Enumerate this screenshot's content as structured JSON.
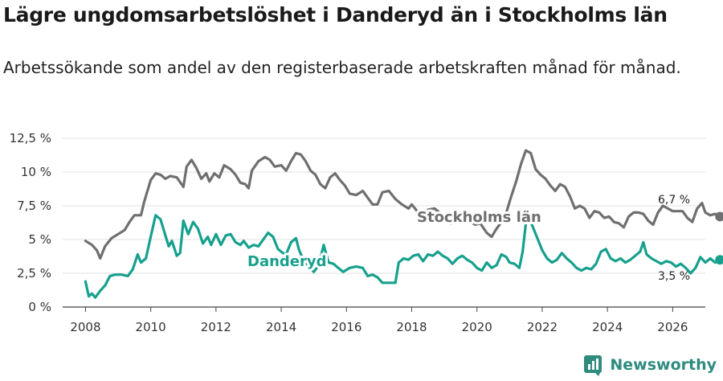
{
  "title": "Lägre ungdomsarbetslöshet i Danderyd än i Stockholms län",
  "subtitle": "Arbetssökande som andel av den registerbaserade arbetskraften månad för månad.",
  "brand": {
    "name": "Newsworthy",
    "color": "#2e8b7e"
  },
  "chart_data": {
    "type": "line",
    "title": "Lägre ungdomsarbetslöshet i Danderyd än i Stockholms län",
    "xlabel": "",
    "ylabel": "",
    "xlim": [
      2007.3,
      2027.0
    ],
    "ylim": [
      0,
      12.5
    ],
    "x_ticks": [
      2008,
      2010,
      2012,
      2014,
      2016,
      2018,
      2020,
      2022,
      2024,
      2026
    ],
    "y_ticks": [
      0,
      2.5,
      5,
      7.5,
      10,
      12.5
    ],
    "y_tick_labels": [
      "0 %",
      "2,5 %",
      "5 %",
      "7,5 %",
      "10 %",
      "12,5 %"
    ],
    "grid": "horizontal",
    "series": [
      {
        "name": "Stockholms län",
        "color": "#6f6f72",
        "label_text": "Stockholms län",
        "end_label": "6,7 %",
        "points": [
          [
            2008.0,
            4.9
          ],
          [
            2008.2,
            4.6
          ],
          [
            2008.35,
            4.2
          ],
          [
            2008.45,
            3.6
          ],
          [
            2008.6,
            4.5
          ],
          [
            2008.8,
            5.1
          ],
          [
            2009.0,
            5.4
          ],
          [
            2009.2,
            5.7
          ],
          [
            2009.35,
            6.3
          ],
          [
            2009.5,
            6.8
          ],
          [
            2009.7,
            6.8
          ],
          [
            2009.8,
            7.8
          ],
          [
            2010.0,
            9.4
          ],
          [
            2010.15,
            9.9
          ],
          [
            2010.3,
            9.8
          ],
          [
            2010.45,
            9.5
          ],
          [
            2010.6,
            9.7
          ],
          [
            2010.8,
            9.6
          ],
          [
            2011.0,
            8.9
          ],
          [
            2011.1,
            10.4
          ],
          [
            2011.25,
            10.9
          ],
          [
            2011.4,
            10.3
          ],
          [
            2011.55,
            9.5
          ],
          [
            2011.7,
            9.9
          ],
          [
            2011.8,
            9.3
          ],
          [
            2011.95,
            9.9
          ],
          [
            2012.1,
            9.6
          ],
          [
            2012.25,
            10.5
          ],
          [
            2012.45,
            10.2
          ],
          [
            2012.6,
            9.8
          ],
          [
            2012.75,
            9.2
          ],
          [
            2012.9,
            9.1
          ],
          [
            2013.0,
            8.8
          ],
          [
            2013.1,
            10.1
          ],
          [
            2013.3,
            10.8
          ],
          [
            2013.5,
            11.1
          ],
          [
            2013.65,
            10.9
          ],
          [
            2013.8,
            10.4
          ],
          [
            2014.0,
            10.5
          ],
          [
            2014.15,
            10.1
          ],
          [
            2014.3,
            10.8
          ],
          [
            2014.45,
            11.4
          ],
          [
            2014.6,
            11.3
          ],
          [
            2014.75,
            10.8
          ],
          [
            2014.9,
            10.1
          ],
          [
            2015.05,
            9.8
          ],
          [
            2015.2,
            9.1
          ],
          [
            2015.35,
            8.8
          ],
          [
            2015.5,
            9.6
          ],
          [
            2015.65,
            9.9
          ],
          [
            2015.8,
            9.4
          ],
          [
            2015.95,
            9.0
          ],
          [
            2016.1,
            8.4
          ],
          [
            2016.3,
            8.3
          ],
          [
            2016.5,
            8.6
          ],
          [
            2016.65,
            8.1
          ],
          [
            2016.8,
            7.6
          ],
          [
            2016.95,
            7.6
          ],
          [
            2017.1,
            8.5
          ],
          [
            2017.3,
            8.6
          ],
          [
            2017.5,
            8.0
          ],
          [
            2017.7,
            7.6
          ],
          [
            2017.9,
            7.3
          ],
          [
            2018.0,
            7.6
          ],
          [
            2018.2,
            7.0
          ],
          [
            2018.35,
            6.6
          ],
          [
            2018.5,
            7.2
          ],
          [
            2018.7,
            7.3
          ],
          [
            2018.9,
            6.9
          ],
          [
            2019.05,
            6.6
          ],
          [
            2019.2,
            6.2
          ],
          [
            2019.35,
            6.6
          ],
          [
            2019.5,
            7.0
          ],
          [
            2019.65,
            6.8
          ],
          [
            2019.8,
            6.3
          ],
          [
            2019.95,
            6.1
          ],
          [
            2020.1,
            6.2
          ],
          [
            2020.3,
            5.5
          ],
          [
            2020.45,
            5.2
          ],
          [
            2020.6,
            5.8
          ],
          [
            2020.75,
            6.3
          ],
          [
            2020.9,
            7.0
          ],
          [
            2021.05,
            8.2
          ],
          [
            2021.2,
            9.3
          ],
          [
            2021.35,
            10.6
          ],
          [
            2021.5,
            11.6
          ],
          [
            2021.65,
            11.4
          ],
          [
            2021.8,
            10.2
          ],
          [
            2021.95,
            9.8
          ],
          [
            2022.1,
            9.5
          ],
          [
            2022.25,
            9.0
          ],
          [
            2022.4,
            8.6
          ],
          [
            2022.55,
            9.1
          ],
          [
            2022.7,
            8.9
          ],
          [
            2022.85,
            8.2
          ],
          [
            2023.0,
            7.3
          ],
          [
            2023.15,
            7.5
          ],
          [
            2023.3,
            7.3
          ],
          [
            2023.45,
            6.6
          ],
          [
            2023.6,
            7.1
          ],
          [
            2023.75,
            7.0
          ],
          [
            2023.9,
            6.6
          ],
          [
            2024.05,
            6.7
          ],
          [
            2024.2,
            6.3
          ],
          [
            2024.35,
            6.2
          ],
          [
            2024.5,
            5.9
          ],
          [
            2024.65,
            6.7
          ],
          [
            2024.8,
            7.0
          ],
          [
            2024.95,
            7.0
          ],
          [
            2025.1,
            6.9
          ],
          [
            2025.25,
            6.4
          ],
          [
            2025.4,
            6.1
          ],
          [
            2025.55,
            7.0
          ],
          [
            2025.7,
            7.5
          ],
          [
            2025.85,
            7.3
          ],
          [
            2026.0,
            7.1
          ],
          [
            2026.15,
            7.1
          ],
          [
            2026.3,
            7.1
          ],
          [
            2026.45,
            6.6
          ],
          [
            2026.6,
            6.3
          ],
          [
            2026.75,
            7.3
          ],
          [
            2026.9,
            7.7
          ],
          [
            2027.0,
            7.0
          ],
          [
            2027.15,
            6.8
          ],
          [
            2027.3,
            6.9
          ],
          [
            2027.45,
            6.7
          ]
        ]
      },
      {
        "name": "Danderyd",
        "color": "#17a08d",
        "label_text": "Danderyd",
        "end_label": "3,5 %",
        "points": [
          [
            2008.0,
            1.9
          ],
          [
            2008.1,
            0.8
          ],
          [
            2008.2,
            1.0
          ],
          [
            2008.3,
            0.7
          ],
          [
            2008.45,
            1.2
          ],
          [
            2008.6,
            1.6
          ],
          [
            2008.75,
            2.3
          ],
          [
            2008.9,
            2.4
          ],
          [
            2009.1,
            2.4
          ],
          [
            2009.3,
            2.3
          ],
          [
            2009.45,
            2.8
          ],
          [
            2009.6,
            3.9
          ],
          [
            2009.7,
            3.3
          ],
          [
            2009.85,
            3.6
          ],
          [
            2010.0,
            5.2
          ],
          [
            2010.15,
            6.8
          ],
          [
            2010.3,
            6.5
          ],
          [
            2010.45,
            5.3
          ],
          [
            2010.55,
            4.5
          ],
          [
            2010.65,
            4.9
          ],
          [
            2010.8,
            3.8
          ],
          [
            2010.9,
            4.0
          ],
          [
            2011.0,
            6.4
          ],
          [
            2011.15,
            5.4
          ],
          [
            2011.3,
            6.3
          ],
          [
            2011.45,
            5.8
          ],
          [
            2011.6,
            4.7
          ],
          [
            2011.75,
            5.2
          ],
          [
            2011.85,
            4.6
          ],
          [
            2012.0,
            5.4
          ],
          [
            2012.15,
            4.6
          ],
          [
            2012.3,
            5.3
          ],
          [
            2012.45,
            5.4
          ],
          [
            2012.6,
            4.8
          ],
          [
            2012.75,
            4.6
          ],
          [
            2012.85,
            4.9
          ],
          [
            2013.0,
            4.4
          ],
          [
            2013.15,
            4.6
          ],
          [
            2013.3,
            4.5
          ],
          [
            2013.45,
            5.0
          ],
          [
            2013.6,
            5.5
          ],
          [
            2013.75,
            5.2
          ],
          [
            2013.9,
            4.3
          ],
          [
            2014.05,
            4.0
          ],
          [
            2014.15,
            3.9
          ],
          [
            2014.3,
            4.8
          ],
          [
            2014.45,
            5.1
          ],
          [
            2014.55,
            4.2
          ],
          [
            2014.7,
            3.4
          ],
          [
            2014.85,
            3.0
          ],
          [
            2015.0,
            2.6
          ],
          [
            2015.15,
            3.1
          ],
          [
            2015.3,
            4.6
          ],
          [
            2015.45,
            3.3
          ],
          [
            2015.6,
            3.2
          ],
          [
            2015.75,
            2.9
          ],
          [
            2015.9,
            2.6
          ],
          [
            2016.1,
            2.9
          ],
          [
            2016.3,
            3.0
          ],
          [
            2016.5,
            2.9
          ],
          [
            2016.65,
            2.3
          ],
          [
            2016.8,
            2.4
          ],
          [
            2016.95,
            2.2
          ],
          [
            2017.1,
            1.8
          ],
          [
            2017.3,
            1.8
          ],
          [
            2017.5,
            1.8
          ],
          [
            2017.6,
            3.3
          ],
          [
            2017.75,
            3.6
          ],
          [
            2017.9,
            3.5
          ],
          [
            2018.05,
            3.8
          ],
          [
            2018.2,
            3.9
          ],
          [
            2018.35,
            3.4
          ],
          [
            2018.5,
            3.9
          ],
          [
            2018.65,
            3.8
          ],
          [
            2018.8,
            4.1
          ],
          [
            2018.95,
            3.8
          ],
          [
            2019.1,
            3.6
          ],
          [
            2019.25,
            3.2
          ],
          [
            2019.4,
            3.6
          ],
          [
            2019.55,
            3.8
          ],
          [
            2019.7,
            3.5
          ],
          [
            2019.85,
            3.3
          ],
          [
            2020.0,
            2.9
          ],
          [
            2020.15,
            2.7
          ],
          [
            2020.3,
            3.3
          ],
          [
            2020.45,
            2.9
          ],
          [
            2020.6,
            3.1
          ],
          [
            2020.75,
            3.9
          ],
          [
            2020.9,
            3.7
          ],
          [
            2021.0,
            3.3
          ],
          [
            2021.15,
            3.2
          ],
          [
            2021.3,
            2.9
          ],
          [
            2021.4,
            4.1
          ],
          [
            2021.5,
            6.2
          ],
          [
            2021.6,
            6.6
          ],
          [
            2021.7,
            6.0
          ],
          [
            2021.85,
            5.1
          ],
          [
            2022.0,
            4.2
          ],
          [
            2022.15,
            3.6
          ],
          [
            2022.3,
            3.3
          ],
          [
            2022.45,
            3.5
          ],
          [
            2022.6,
            4.0
          ],
          [
            2022.75,
            3.6
          ],
          [
            2022.9,
            3.3
          ],
          [
            2023.05,
            2.9
          ],
          [
            2023.2,
            2.7
          ],
          [
            2023.35,
            2.9
          ],
          [
            2023.5,
            2.8
          ],
          [
            2023.65,
            3.2
          ],
          [
            2023.8,
            4.1
          ],
          [
            2023.95,
            4.3
          ],
          [
            2024.1,
            3.6
          ],
          [
            2024.25,
            3.4
          ],
          [
            2024.4,
            3.6
          ],
          [
            2024.55,
            3.3
          ],
          [
            2024.7,
            3.5
          ],
          [
            2024.85,
            3.8
          ],
          [
            2025.0,
            4.1
          ],
          [
            2025.1,
            4.8
          ],
          [
            2025.2,
            3.9
          ],
          [
            2025.35,
            3.6
          ],
          [
            2025.5,
            3.4
          ],
          [
            2025.65,
            3.2
          ],
          [
            2025.8,
            3.4
          ],
          [
            2025.95,
            3.3
          ],
          [
            2026.1,
            3.0
          ],
          [
            2026.25,
            3.2
          ],
          [
            2026.4,
            2.9
          ],
          [
            2026.55,
            2.5
          ],
          [
            2026.7,
            2.9
          ],
          [
            2026.85,
            3.7
          ],
          [
            2027.0,
            3.3
          ],
          [
            2027.15,
            3.6
          ],
          [
            2027.3,
            3.3
          ],
          [
            2027.45,
            3.5
          ]
        ]
      }
    ]
  }
}
